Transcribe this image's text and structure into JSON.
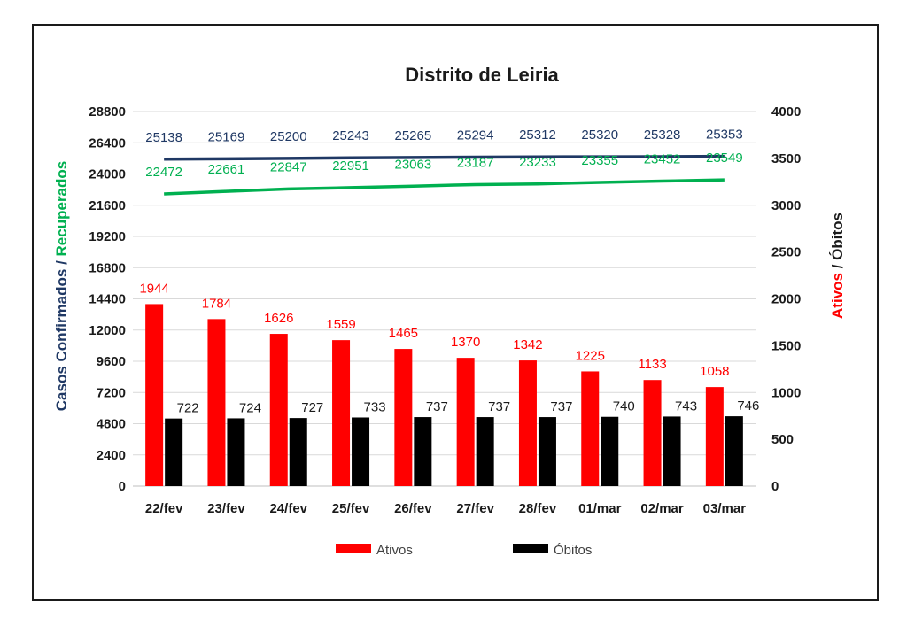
{
  "chart_data": {
    "type": "bar",
    "title": "Distrito de Leiria",
    "categories": [
      "22/fev",
      "23/fev",
      "24/fev",
      "25/fev",
      "26/fev",
      "27/fev",
      "28/fev",
      "01/mar",
      "02/mar",
      "03/mar"
    ],
    "y_left": {
      "label_part1": "Casos Confirmados",
      "label_sep": " / ",
      "label_part2": "Recuperados",
      "ylim": [
        0,
        28800
      ],
      "ticks": [
        0,
        2400,
        4800,
        7200,
        9600,
        12000,
        14400,
        16800,
        19200,
        21600,
        24000,
        26400,
        28800
      ]
    },
    "y_right": {
      "label_part1": "Ativos",
      "label_sep": " / ",
      "label_part2": "Óbitos",
      "ylim": [
        0,
        4000
      ],
      "ticks": [
        0,
        500,
        1000,
        1500,
        2000,
        2500,
        3000,
        3500,
        4000
      ]
    },
    "series": [
      {
        "name": "Casos Confirmados",
        "kind": "line",
        "axis": "left",
        "color": "#1f3864",
        "values": [
          25138,
          25169,
          25200,
          25243,
          25265,
          25294,
          25312,
          25320,
          25328,
          25353
        ]
      },
      {
        "name": "Recuperados",
        "kind": "line",
        "axis": "left",
        "color": "#00b050",
        "values": [
          22472,
          22661,
          22847,
          22951,
          23063,
          23187,
          23233,
          23355,
          23452,
          23549
        ]
      },
      {
        "name": "Ativos",
        "kind": "bar",
        "axis": "right",
        "color": "#ff0000",
        "values": [
          1944,
          1784,
          1626,
          1559,
          1465,
          1370,
          1342,
          1225,
          1133,
          1058
        ]
      },
      {
        "name": "Óbitos",
        "kind": "bar",
        "axis": "right",
        "color": "#000000",
        "values": [
          722,
          724,
          727,
          733,
          737,
          737,
          737,
          740,
          743,
          746
        ]
      }
    ],
    "legend": {
      "placement": "bottom",
      "items": [
        {
          "label": "Ativos",
          "color": "#ff0000"
        },
        {
          "label": "Óbitos",
          "color": "#000000"
        }
      ]
    },
    "grid": true,
    "colors": {
      "left_label_part1": "#1f3864",
      "left_label_part2": "#00b050",
      "right_label_part1": "#ff0000",
      "right_label_part2": "#1a1a1a",
      "ativos_label": "#ff0000",
      "obitos_label": "#1a1a1a"
    }
  }
}
